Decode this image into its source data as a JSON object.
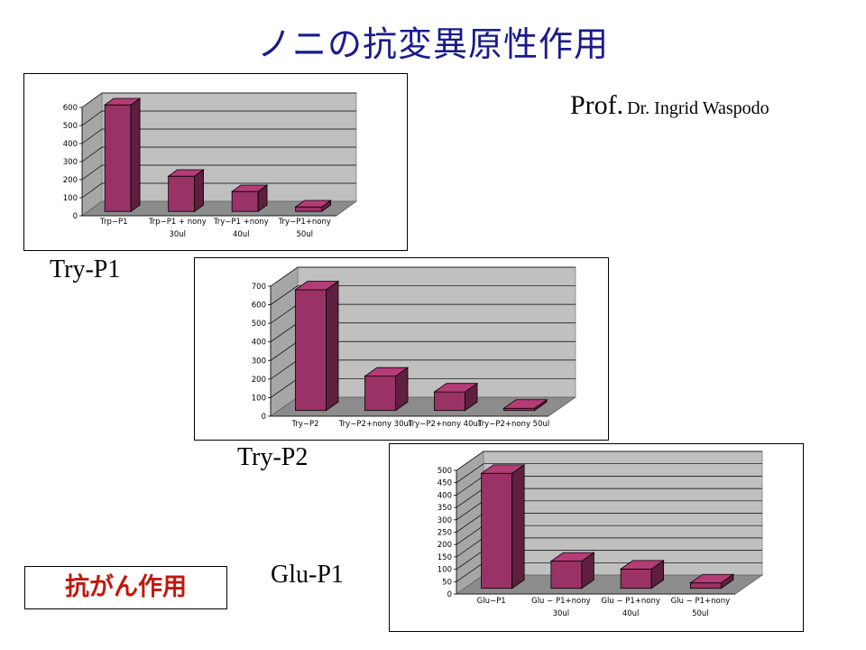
{
  "slide": {
    "title": "ノニの抗変異原性作用",
    "author_prefix": "Prof.",
    "author_name": "Dr. Ingrid Waspodo",
    "badge": "抗がん作用",
    "bar_color": "#993366"
  },
  "chart_data": [
    {
      "type": "bar",
      "panel_label": "Try-P1",
      "categories": [
        [
          "Trp−P1"
        ],
        [
          "Trp−P1 + nony",
          "30ul"
        ],
        [
          "Try−P1 +nony",
          "40ul"
        ],
        [
          "Try−P1+nony",
          "50ul"
        ]
      ],
      "values": [
        590,
        195,
        110,
        25
      ],
      "ylim": [
        0,
        600
      ],
      "yticks": [
        0,
        100,
        200,
        300,
        400,
        500,
        600
      ],
      "grid": true
    },
    {
      "type": "bar",
      "panel_label": "Try-P2",
      "categories": [
        [
          "Try−P2"
        ],
        [
          "Try−P2+nony 30ul"
        ],
        [
          "Try−P2+nony 40ul"
        ],
        [
          "Try−P2+nony 50ul"
        ]
      ],
      "values": [
        650,
        185,
        100,
        12
      ],
      "ylim": [
        0,
        700
      ],
      "yticks": [
        0,
        100,
        200,
        300,
        400,
        500,
        600,
        700
      ],
      "grid": true
    },
    {
      "type": "bar",
      "panel_label": "Glu-P1",
      "categories": [
        [
          "Glu−P1"
        ],
        [
          "Glu − P1+nony",
          "30ul"
        ],
        [
          "Glu − P1+nony",
          "40ul"
        ],
        [
          "Glu − P1+nony",
          "50ul"
        ]
      ],
      "values": [
        465,
        110,
        78,
        22
      ],
      "ylim": [
        0,
        500
      ],
      "yticks": [
        0,
        50,
        100,
        150,
        200,
        250,
        300,
        350,
        400,
        450,
        500
      ],
      "grid": true
    }
  ]
}
